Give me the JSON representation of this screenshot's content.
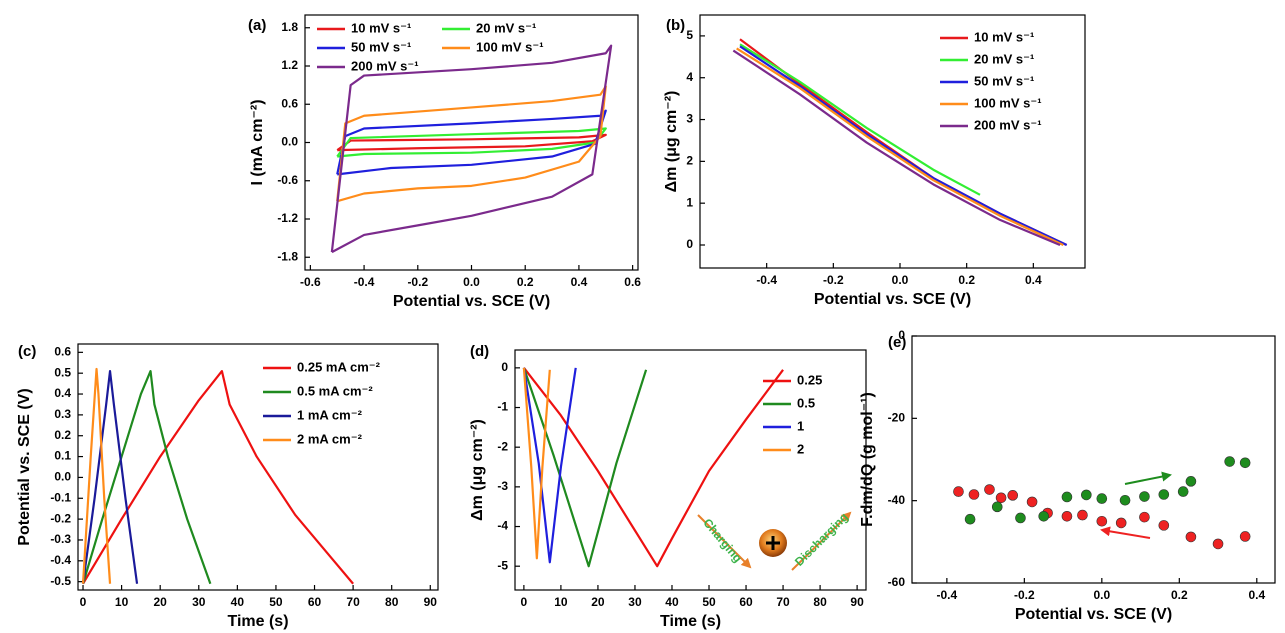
{
  "chart_data": [
    {
      "type": "line",
      "label": "(a)",
      "xlabel": "Potential vs. SCE (V)",
      "ylabel": "I (mA cm⁻²)",
      "xlim": [
        -0.62,
        0.62
      ],
      "ylim": [
        -2.0,
        2.0
      ],
      "xticks": [
        -0.6,
        -0.4,
        -0.2,
        {
          "value": 0,
          "label": "0.0"
        },
        0.2,
        0.4,
        0.6
      ],
      "yticks": [
        -1.8,
        -1.2,
        -0.6,
        {
          "value": 0,
          "label": "0.0"
        },
        0.6,
        1.2,
        1.8
      ],
      "legend": "upper left",
      "legend_columns": 2,
      "series": [
        {
          "name": "10 mV s⁻¹",
          "color": "#e8191c",
          "x": [
            -0.5,
            -0.45,
            0,
            0.4,
            0.5,
            0.45,
            0.2,
            -0.2,
            -0.5
          ],
          "values": [
            -0.12,
            0.03,
            0.05,
            0.08,
            0.12,
            0.02,
            -0.06,
            -0.09,
            -0.12
          ]
        },
        {
          "name": "20 mV s⁻¹",
          "color": "#33ee33",
          "x": [
            -0.5,
            -0.45,
            0,
            0.4,
            0.5,
            0.46,
            0.3,
            0,
            -0.4,
            -0.5
          ],
          "values": [
            -0.22,
            0.07,
            0.13,
            0.18,
            0.22,
            0.0,
            -0.1,
            -0.16,
            -0.18,
            -0.22
          ]
        },
        {
          "name": "50 mV s⁻¹",
          "color": "#1f1fdd",
          "x": [
            -0.5,
            -0.47,
            -0.4,
            0,
            0.3,
            0.48,
            0.5,
            0.46,
            0.3,
            0,
            -0.3,
            -0.5
          ],
          "values": [
            -0.5,
            0.1,
            0.22,
            0.3,
            0.37,
            0.42,
            0.5,
            -0.02,
            -0.22,
            -0.35,
            -0.4,
            -0.5
          ]
        },
        {
          "name": "100 mV s⁻¹",
          "color": "#ff8c1a",
          "x": [
            -0.5,
            -0.47,
            -0.4,
            0,
            0.3,
            0.48,
            0.5,
            0.48,
            0.4,
            0.2,
            0,
            -0.2,
            -0.4,
            -0.5
          ],
          "values": [
            -0.92,
            0.3,
            0.42,
            0.55,
            0.65,
            0.75,
            0.88,
            0.1,
            -0.3,
            -0.55,
            -0.68,
            -0.72,
            -0.8,
            -0.92
          ]
        },
        {
          "name": "200 mV s⁻¹",
          "color": "#7b2a8c",
          "x": [
            -0.52,
            -0.45,
            -0.4,
            0,
            0.3,
            0.5,
            0.52,
            0.45,
            0.3,
            0,
            -0.2,
            -0.4,
            -0.52
          ],
          "values": [
            -1.72,
            0.9,
            1.05,
            1.15,
            1.25,
            1.4,
            1.52,
            -0.5,
            -0.85,
            -1.15,
            -1.3,
            -1.45,
            -1.72
          ]
        }
      ]
    },
    {
      "type": "line",
      "label": "(b)",
      "xlabel": "Potential vs. SCE (V)",
      "ylabel": "Δm (μg cm⁻²)",
      "xlim": [
        -0.6,
        0.555
      ],
      "ylim": [
        -0.55,
        5.5
      ],
      "xticks": [
        -0.4,
        -0.2,
        {
          "value": 0,
          "label": "0.0"
        },
        0.2,
        0.4
      ],
      "yticks": [
        0,
        1,
        2,
        3,
        4,
        5
      ],
      "legend": "upper right",
      "series": [
        {
          "name": "10 mV s⁻¹",
          "color": "#e8191c",
          "x": [
            -0.48,
            -0.3,
            -0.1,
            0.1,
            0.3,
            0.5
          ],
          "values": [
            4.92,
            3.85,
            2.7,
            1.6,
            0.75,
            0.0
          ]
        },
        {
          "name": "20 mV s⁻¹",
          "color": "#33ee33",
          "x": [
            -0.48,
            -0.3,
            -0.1,
            0.1,
            0.24
          ],
          "values": [
            4.8,
            3.9,
            2.8,
            1.8,
            1.2
          ]
        },
        {
          "name": "50 mV s⁻¹",
          "color": "#1f1fdd",
          "x": [
            -0.48,
            -0.3,
            -0.1,
            0.1,
            0.3,
            0.5
          ],
          "values": [
            4.75,
            3.8,
            2.65,
            1.6,
            0.75,
            0.0
          ]
        },
        {
          "name": "100 mV s⁻¹",
          "color": "#ff8c1a",
          "x": [
            -0.49,
            -0.3,
            -0.1,
            0.1,
            0.3,
            0.49
          ],
          "values": [
            4.7,
            3.75,
            2.6,
            1.55,
            0.7,
            0.0
          ]
        },
        {
          "name": "200 mV s⁻¹",
          "color": "#7b2a8c",
          "x": [
            -0.5,
            -0.3,
            -0.1,
            0.1,
            0.3,
            0.48
          ],
          "values": [
            4.65,
            3.6,
            2.45,
            1.45,
            0.6,
            0.0
          ]
        }
      ]
    },
    {
      "type": "line",
      "label": "(c)",
      "xlabel": "Time (s)",
      "ylabel": "Potential vs. SCE (V)",
      "xlim": [
        -1.3,
        92
      ],
      "ylim": [
        -0.54,
        0.64
      ],
      "xticks": [
        0,
        10,
        20,
        30,
        40,
        50,
        60,
        70,
        80,
        90
      ],
      "yticks": [
        -0.5,
        -0.4,
        -0.3,
        -0.2,
        -0.1,
        {
          "value": 0,
          "label": "0.0"
        },
        0.1,
        0.2,
        0.3,
        0.4,
        0.5,
        0.6
      ],
      "legend": "upper right",
      "series": [
        {
          "name": "0.25 mA cm⁻²",
          "color": "#ee1111",
          "x": [
            0,
            10,
            20,
            30,
            36,
            38,
            45,
            55,
            65,
            70
          ],
          "values": [
            -0.51,
            -0.2,
            0.1,
            0.37,
            0.51,
            0.35,
            0.1,
            -0.18,
            -0.4,
            -0.51
          ]
        },
        {
          "name": "0.5 mA cm⁻²",
          "color": "#1f8a1f",
          "x": [
            0,
            5,
            10,
            15,
            17.5,
            18.5,
            22,
            27,
            33
          ],
          "values": [
            -0.51,
            -0.2,
            0.1,
            0.4,
            0.51,
            0.35,
            0.1,
            -0.2,
            -0.51
          ]
        },
        {
          "name": "1 mA cm⁻²",
          "color": "#1a1a9a",
          "x": [
            0,
            3,
            6,
            7,
            8,
            11,
            14
          ],
          "values": [
            -0.51,
            -0.1,
            0.35,
            0.51,
            0.35,
            -0.1,
            -0.51
          ]
        },
        {
          "name": "2 mA cm⁻²",
          "color": "#ff8c1a",
          "x": [
            0,
            2,
            3.5,
            4,
            5.5,
            7
          ],
          "values": [
            -0.51,
            0.1,
            0.52,
            0.4,
            -0.1,
            -0.51
          ]
        }
      ]
    },
    {
      "type": "line",
      "label": "(d)",
      "xlabel": "Time (s)",
      "ylabel": "Δm (μg cm⁻²)",
      "xlim": [
        -2.4,
        92.4
      ],
      "ylim": [
        -5.6,
        0.45
      ],
      "xticks": [
        0,
        10,
        20,
        30,
        40,
        50,
        60,
        70,
        80,
        90
      ],
      "yticks": [
        -5,
        -4,
        -3,
        -2,
        -1,
        0
      ],
      "legend": "upper right",
      "annotations": [
        "Charging",
        "Discharging"
      ],
      "series": [
        {
          "name": "0.25",
          "color": "#ee1111",
          "x": [
            0,
            10,
            20,
            30,
            36,
            40,
            50,
            60,
            70
          ],
          "values": [
            0,
            -1.2,
            -2.6,
            -4.1,
            -5,
            -4.3,
            -2.6,
            -1.3,
            -0.05
          ]
        },
        {
          "name": "0.5",
          "color": "#1f8a1f",
          "x": [
            0,
            8,
            17.5,
            25,
            33
          ],
          "values": [
            0,
            -2.2,
            -5,
            -2.4,
            -0.05
          ]
        },
        {
          "name": "1",
          "color": "#1f1fdd",
          "x": [
            0,
            4,
            7,
            10,
            14
          ],
          "values": [
            0,
            -2.4,
            -4.9,
            -2.5,
            0
          ]
        },
        {
          "name": "2",
          "color": "#ff8c1a",
          "x": [
            0,
            2,
            3.5,
            5,
            7
          ],
          "values": [
            0,
            -2.5,
            -4.8,
            -2.5,
            -0.05
          ]
        }
      ]
    },
    {
      "type": "scatter",
      "label": "(e)",
      "xlabel": "Potential vs. SCE (V)",
      "ylabel": "F.dm/dQ (g mol⁻¹)",
      "xlim": [
        -0.49,
        0.447
      ],
      "ylim": [
        -60,
        0
      ],
      "xticks": [
        -0.4,
        -0.2,
        {
          "value": 0,
          "label": "0.0"
        },
        0.2,
        0.4
      ],
      "yticks": [
        -60,
        -40,
        -20,
        0
      ],
      "series": [
        {
          "color": "#ee2222",
          "x": [
            -0.37,
            -0.33,
            -0.29,
            -0.26,
            -0.23,
            -0.18,
            -0.14,
            -0.09,
            -0.05,
            0.0,
            0.05,
            0.11,
            0.16,
            0.23,
            0.3,
            0.37
          ],
          "values": [
            -37.8,
            -38.5,
            -37.3,
            -39.3,
            -38.7,
            -40.3,
            -43,
            -43.8,
            -43.5,
            -45,
            -45.4,
            -44,
            -46,
            -48.8,
            -50.5,
            -48.7
          ]
        },
        {
          "color": "#1e8c1e",
          "x": [
            -0.34,
            -0.27,
            -0.21,
            -0.15,
            -0.09,
            -0.04,
            0.0,
            0.06,
            0.11,
            0.16,
            0.21,
            0.23,
            0.33,
            0.37
          ],
          "values": [
            -44.5,
            -41.5,
            -44.2,
            -43.8,
            -39.1,
            -38.6,
            -39.5,
            -39.9,
            -39,
            -38.5,
            -37.8,
            -35.3,
            -30.5,
            -30.8
          ]
        }
      ]
    }
  ]
}
